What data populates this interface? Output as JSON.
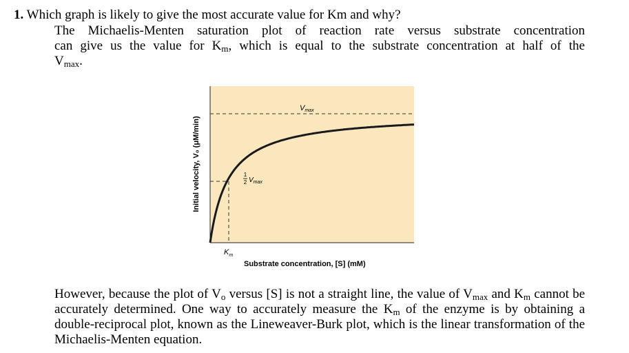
{
  "question": {
    "number": "1.",
    "text": "Which graph is likely to give the most accurate value for Km and why?"
  },
  "paragraph1": {
    "line1": "The Michaelis-Menten saturation plot of reaction rate versus substrate concentration",
    "line2": "can give us the value for K",
    "line2_sub": "m",
    "line2_rest": ", which is equal to the substrate concentration at half of the",
    "line3": "V",
    "line3_sub": "max",
    "line3_rest": "."
  },
  "figure": {
    "background_color": "#fae7bd",
    "curve_color": "#1a1a1a",
    "ylabel": "Initial velocity, V₀ (μM/min)",
    "xlabel": "Substrate concentration, [S] (mM)",
    "vmax_label": "V",
    "vmax_sub": "max",
    "half_label_num": "1",
    "half_label_den": "2",
    "half_label": "V",
    "half_sub": "max",
    "km_label": "K",
    "km_sub": "m"
  },
  "paragraph2": {
    "t1": "However, because the plot of V",
    "t1_sub": "o",
    "t2": " versus [S] is not a straight line, the value of V",
    "t2_sub": "max",
    "t3": " and K",
    "t3_sub": "m",
    "t4": " cannot be accurately determined. One way to accurately measure the K",
    "t4_sub": "m",
    "t5": " of the enzyme is by obtaining a double-reciprocal plot, known as the Lineweaver-Burk plot, which is the linear transformation of the Michaelis-Menten equation."
  }
}
